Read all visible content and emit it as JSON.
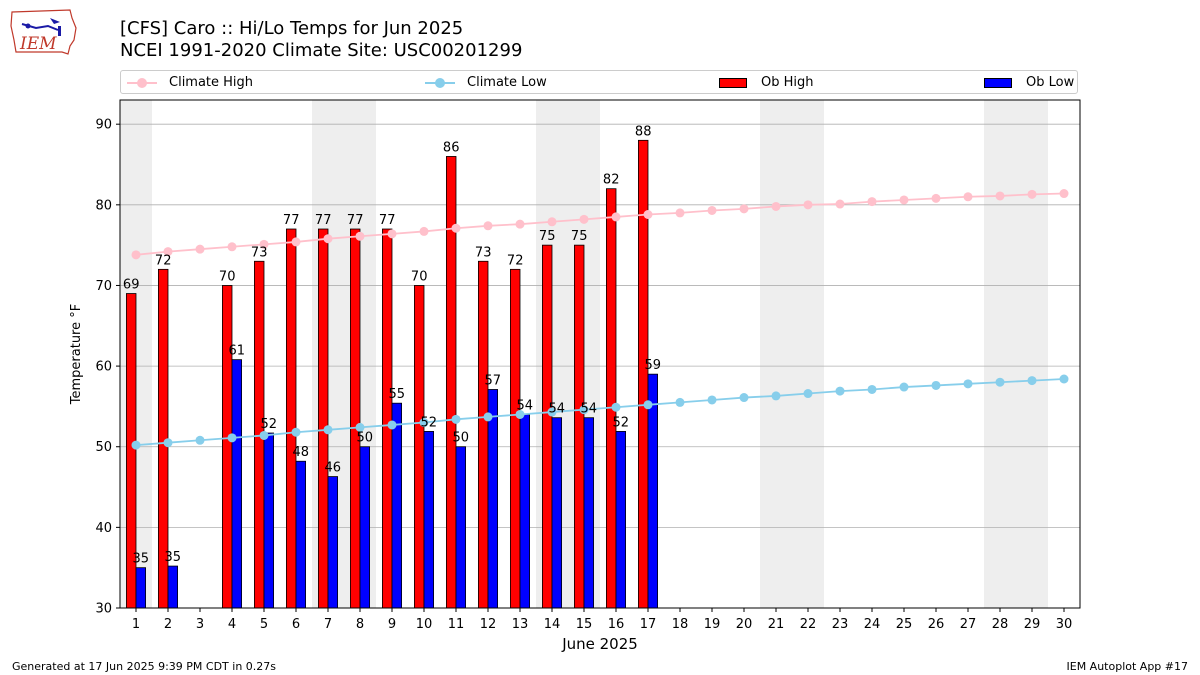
{
  "header": {
    "title_line1": "[CFS] Caro :: Hi/Lo Temps for Jun 2025",
    "title_line2": "NCEI 1991-2020 Climate Site: USC00201299"
  },
  "logo": {
    "text": "IEM"
  },
  "footer": {
    "generated": "Generated at 17 Jun 2025 9:39 PM CDT in 0.27s",
    "app": "IEM Autoplot App #17"
  },
  "legend": {
    "items": [
      {
        "label": "Climate High",
        "kind": "line",
        "color": "#ffc0cb"
      },
      {
        "label": "Climate Low",
        "kind": "line",
        "color": "#87ceeb"
      },
      {
        "label": "Ob High",
        "kind": "bar",
        "color": "#ff0000"
      },
      {
        "label": "Ob Low",
        "kind": "bar",
        "color": "#0000ff"
      }
    ]
  },
  "chart_data": {
    "type": "bar",
    "xlabel": "June 2025",
    "ylabel": "Temperature °F",
    "xlim": [
      0.5,
      30.5
    ],
    "ylim": [
      30,
      93
    ],
    "yticks": [
      30,
      40,
      50,
      60,
      70,
      80,
      90
    ],
    "grid": "horizontal",
    "legend_position": "top",
    "weekend_shading_days": [
      1,
      7,
      8,
      14,
      15,
      21,
      22,
      28,
      29
    ],
    "shading_color": "#eeeeee",
    "x": [
      1,
      2,
      3,
      4,
      5,
      6,
      7,
      8,
      9,
      10,
      11,
      12,
      13,
      14,
      15,
      16,
      17,
      18,
      19,
      20,
      21,
      22,
      23,
      24,
      25,
      26,
      27,
      28,
      29,
      30
    ],
    "series": [
      {
        "name": "Ob High",
        "kind": "bar",
        "color": "#ff0000",
        "values": [
          69,
          72,
          null,
          70,
          73,
          77,
          77,
          77,
          77,
          70,
          86,
          73,
          72,
          75,
          75,
          82,
          88,
          null,
          null,
          null,
          null,
          null,
          null,
          null,
          null,
          null,
          null,
          null,
          null,
          null
        ],
        "labels": [
          69,
          72,
          null,
          70,
          73,
          77,
          77,
          77,
          77,
          70,
          86,
          73,
          72,
          75,
          75,
          82,
          88,
          null,
          null,
          null,
          null,
          null,
          null,
          null,
          null,
          null,
          null,
          null,
          null,
          null
        ]
      },
      {
        "name": "Ob Low",
        "kind": "bar",
        "color": "#0000ff",
        "values": [
          35,
          35.2,
          null,
          60.8,
          51.7,
          48.2,
          46.3,
          50,
          55.4,
          51.9,
          50,
          57.1,
          54,
          53.6,
          53.6,
          51.9,
          59,
          null,
          null,
          null,
          null,
          null,
          null,
          null,
          null,
          null,
          null,
          null,
          null,
          null
        ],
        "labels": [
          35,
          35,
          null,
          61,
          52,
          48,
          46,
          50,
          55,
          52,
          50,
          57,
          54,
          54,
          54,
          52,
          59,
          null,
          null,
          null,
          null,
          null,
          null,
          null,
          null,
          null,
          null,
          null,
          null,
          null
        ]
      },
      {
        "name": "Climate High",
        "kind": "line",
        "color": "#ffc0cb",
        "values": [
          73.8,
          74.2,
          74.5,
          74.8,
          75.1,
          75.4,
          75.8,
          76.1,
          76.4,
          76.7,
          77.1,
          77.4,
          77.6,
          77.9,
          78.2,
          78.5,
          78.8,
          79.0,
          79.3,
          79.5,
          79.8,
          80.0,
          80.1,
          80.4,
          80.6,
          80.8,
          81.0,
          81.1,
          81.3,
          81.4
        ]
      },
      {
        "name": "Climate Low",
        "kind": "line",
        "color": "#87ceeb",
        "values": [
          50.2,
          50.5,
          50.8,
          51.1,
          51.4,
          51.8,
          52.1,
          52.4,
          52.7,
          53.0,
          53.4,
          53.7,
          54.0,
          54.3,
          54.6,
          54.9,
          55.2,
          55.5,
          55.8,
          56.1,
          56.3,
          56.6,
          56.9,
          57.1,
          57.4,
          57.6,
          57.8,
          58.0,
          58.2,
          58.4
        ]
      }
    ]
  }
}
